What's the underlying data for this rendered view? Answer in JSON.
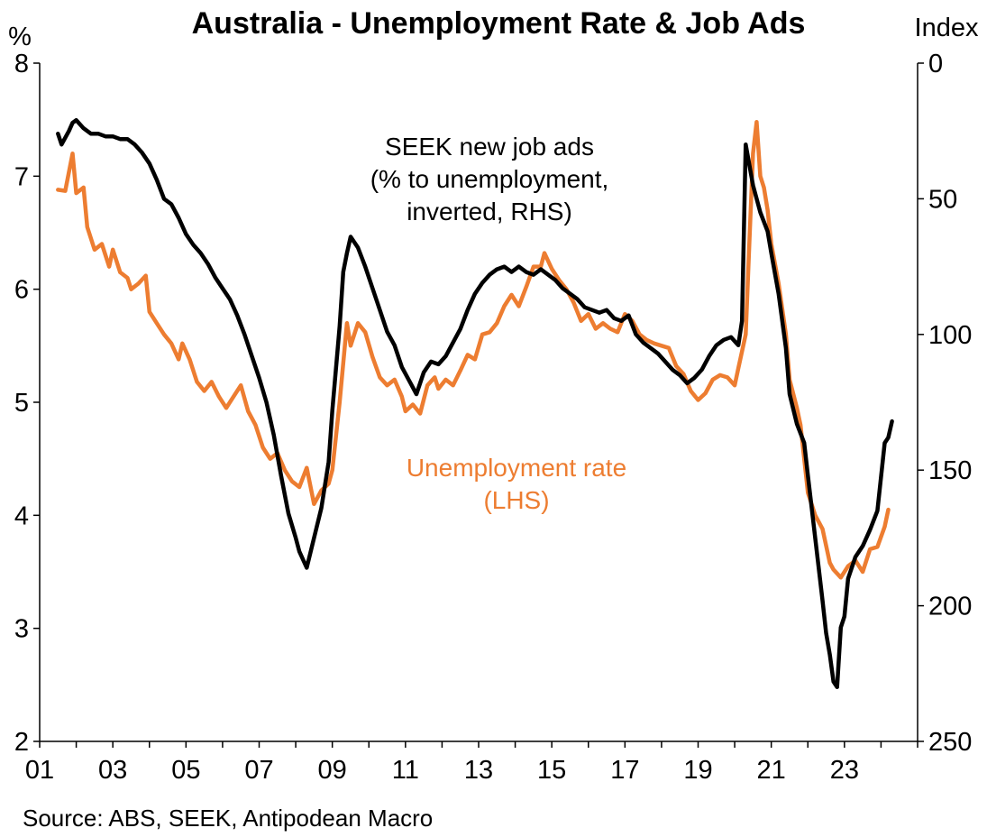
{
  "chart_data": {
    "type": "line",
    "title": "Australia - Unemployment Rate & Job Ads",
    "left_axis": {
      "unit": "%",
      "ylim": [
        2,
        8
      ],
      "ticks": [
        "2",
        "3",
        "4",
        "5",
        "6",
        "7",
        "8"
      ]
    },
    "right_axis": {
      "unit": "Index",
      "ylim": [
        0,
        250
      ],
      "inverted": true,
      "ticks": [
        "0",
        "50",
        "100",
        "150",
        "200",
        "250"
      ]
    },
    "x_axis": {
      "xlim": [
        2001,
        2025
      ],
      "ticks": [
        "01",
        "03",
        "05",
        "07",
        "09",
        "11",
        "13",
        "15",
        "17",
        "19",
        "21",
        "23"
      ],
      "tick_years": [
        2001,
        2003,
        2005,
        2007,
        2009,
        2011,
        2013,
        2015,
        2017,
        2019,
        2021,
        2023
      ]
    },
    "annotations": {
      "seek": [
        "SEEK new job ads",
        "(% to unemployment,",
        "inverted, RHS)"
      ],
      "unemployment": [
        "Unemployment rate",
        "(LHS)"
      ]
    },
    "source": "Source: ABS, SEEK, Antipodean Macro",
    "colors": {
      "seek": "#000000",
      "unemployment": "#ED7D31"
    },
    "series": [
      {
        "name": "Unemployment rate",
        "axis": "left",
        "points": [
          [
            2001.5,
            6.88
          ],
          [
            2001.7,
            6.87
          ],
          [
            2001.9,
            7.2
          ],
          [
            2002.0,
            6.85
          ],
          [
            2002.2,
            6.9
          ],
          [
            2002.3,
            6.55
          ],
          [
            2002.5,
            6.35
          ],
          [
            2002.7,
            6.4
          ],
          [
            2002.9,
            6.2
          ],
          [
            2003.0,
            6.35
          ],
          [
            2003.2,
            6.15
          ],
          [
            2003.4,
            6.1
          ],
          [
            2003.5,
            6.0
          ],
          [
            2003.7,
            6.05
          ],
          [
            2003.9,
            6.12
          ],
          [
            2004.0,
            5.8
          ],
          [
            2004.2,
            5.7
          ],
          [
            2004.4,
            5.6
          ],
          [
            2004.6,
            5.52
          ],
          [
            2004.8,
            5.38
          ],
          [
            2004.9,
            5.52
          ],
          [
            2005.1,
            5.38
          ],
          [
            2005.3,
            5.18
          ],
          [
            2005.5,
            5.1
          ],
          [
            2005.7,
            5.18
          ],
          [
            2005.9,
            5.05
          ],
          [
            2006.1,
            4.95
          ],
          [
            2006.3,
            5.05
          ],
          [
            2006.5,
            5.15
          ],
          [
            2006.7,
            4.92
          ],
          [
            2006.9,
            4.8
          ],
          [
            2007.1,
            4.6
          ],
          [
            2007.3,
            4.5
          ],
          [
            2007.5,
            4.55
          ],
          [
            2007.7,
            4.4
          ],
          [
            2007.9,
            4.3
          ],
          [
            2008.1,
            4.25
          ],
          [
            2008.3,
            4.42
          ],
          [
            2008.5,
            4.1
          ],
          [
            2008.7,
            4.22
          ],
          [
            2008.9,
            4.28
          ],
          [
            2009.0,
            4.4
          ],
          [
            2009.2,
            5.0
          ],
          [
            2009.4,
            5.7
          ],
          [
            2009.5,
            5.5
          ],
          [
            2009.7,
            5.7
          ],
          [
            2009.9,
            5.62
          ],
          [
            2010.1,
            5.4
          ],
          [
            2010.3,
            5.22
          ],
          [
            2010.5,
            5.15
          ],
          [
            2010.7,
            5.2
          ],
          [
            2010.9,
            5.05
          ],
          [
            2011.0,
            4.92
          ],
          [
            2011.2,
            4.98
          ],
          [
            2011.4,
            4.9
          ],
          [
            2011.6,
            5.15
          ],
          [
            2011.8,
            5.22
          ],
          [
            2011.9,
            5.12
          ],
          [
            2012.1,
            5.2
          ],
          [
            2012.3,
            5.15
          ],
          [
            2012.5,
            5.28
          ],
          [
            2012.7,
            5.42
          ],
          [
            2012.9,
            5.38
          ],
          [
            2013.1,
            5.6
          ],
          [
            2013.3,
            5.62
          ],
          [
            2013.5,
            5.7
          ],
          [
            2013.7,
            5.85
          ],
          [
            2013.9,
            5.95
          ],
          [
            2014.1,
            5.85
          ],
          [
            2014.3,
            6.02
          ],
          [
            2014.5,
            6.2
          ],
          [
            2014.7,
            6.2
          ],
          [
            2014.8,
            6.32
          ],
          [
            2015.0,
            6.18
          ],
          [
            2015.2,
            6.08
          ],
          [
            2015.4,
            6.0
          ],
          [
            2015.6,
            5.88
          ],
          [
            2015.8,
            5.72
          ],
          [
            2016.0,
            5.78
          ],
          [
            2016.2,
            5.65
          ],
          [
            2016.4,
            5.7
          ],
          [
            2016.6,
            5.65
          ],
          [
            2016.8,
            5.62
          ],
          [
            2017.0,
            5.78
          ],
          [
            2017.2,
            5.72
          ],
          [
            2017.4,
            5.6
          ],
          [
            2017.6,
            5.55
          ],
          [
            2017.8,
            5.52
          ],
          [
            2018.0,
            5.5
          ],
          [
            2018.2,
            5.48
          ],
          [
            2018.4,
            5.32
          ],
          [
            2018.6,
            5.25
          ],
          [
            2018.8,
            5.1
          ],
          [
            2019.0,
            5.02
          ],
          [
            2019.2,
            5.08
          ],
          [
            2019.4,
            5.2
          ],
          [
            2019.6,
            5.24
          ],
          [
            2019.8,
            5.22
          ],
          [
            2020.0,
            5.15
          ],
          [
            2020.1,
            5.3
          ],
          [
            2020.3,
            5.6
          ],
          [
            2020.4,
            6.4
          ],
          [
            2020.5,
            7.2
          ],
          [
            2020.6,
            7.48
          ],
          [
            2020.7,
            7.0
          ],
          [
            2020.8,
            6.9
          ],
          [
            2020.9,
            6.7
          ],
          [
            2021.0,
            6.4
          ],
          [
            2021.2,
            6.05
          ],
          [
            2021.4,
            5.6
          ],
          [
            2021.5,
            5.2
          ],
          [
            2021.7,
            4.95
          ],
          [
            2021.8,
            4.8
          ],
          [
            2022.0,
            4.2
          ],
          [
            2022.2,
            4.0
          ],
          [
            2022.4,
            3.88
          ],
          [
            2022.6,
            3.58
          ],
          [
            2022.7,
            3.52
          ],
          [
            2022.9,
            3.45
          ],
          [
            2023.1,
            3.55
          ],
          [
            2023.3,
            3.6
          ],
          [
            2023.5,
            3.5
          ],
          [
            2023.7,
            3.7
          ],
          [
            2023.9,
            3.72
          ],
          [
            2024.1,
            3.9
          ],
          [
            2024.2,
            4.05
          ]
        ]
      },
      {
        "name": "SEEK new job ads",
        "axis": "right",
        "points": [
          [
            2001.5,
            26
          ],
          [
            2001.6,
            30
          ],
          [
            2001.8,
            25
          ],
          [
            2001.9,
            22
          ],
          [
            2002.0,
            21
          ],
          [
            2002.2,
            24
          ],
          [
            2002.4,
            26
          ],
          [
            2002.6,
            26
          ],
          [
            2002.8,
            27
          ],
          [
            2003.0,
            27
          ],
          [
            2003.2,
            28
          ],
          [
            2003.4,
            28
          ],
          [
            2003.6,
            30
          ],
          [
            2003.8,
            33
          ],
          [
            2004.0,
            37
          ],
          [
            2004.2,
            43
          ],
          [
            2004.4,
            50
          ],
          [
            2004.6,
            52
          ],
          [
            2004.8,
            57
          ],
          [
            2005.0,
            63
          ],
          [
            2005.2,
            67
          ],
          [
            2005.4,
            70
          ],
          [
            2005.6,
            74
          ],
          [
            2005.8,
            79
          ],
          [
            2006.0,
            83
          ],
          [
            2006.2,
            87
          ],
          [
            2006.4,
            93
          ],
          [
            2006.6,
            100
          ],
          [
            2006.8,
            108
          ],
          [
            2007.0,
            116
          ],
          [
            2007.2,
            125
          ],
          [
            2007.4,
            137
          ],
          [
            2007.6,
            152
          ],
          [
            2007.8,
            166
          ],
          [
            2008.0,
            175
          ],
          [
            2008.1,
            180
          ],
          [
            2008.3,
            186
          ],
          [
            2008.5,
            175
          ],
          [
            2008.7,
            164
          ],
          [
            2008.9,
            147
          ],
          [
            2009.0,
            128
          ],
          [
            2009.2,
            97
          ],
          [
            2009.3,
            77
          ],
          [
            2009.4,
            70
          ],
          [
            2009.5,
            64
          ],
          [
            2009.7,
            68
          ],
          [
            2009.9,
            75
          ],
          [
            2010.1,
            83
          ],
          [
            2010.3,
            91
          ],
          [
            2010.5,
            99
          ],
          [
            2010.7,
            104
          ],
          [
            2010.9,
            112
          ],
          [
            2011.1,
            117
          ],
          [
            2011.3,
            122
          ],
          [
            2011.5,
            114
          ],
          [
            2011.7,
            110
          ],
          [
            2011.9,
            111
          ],
          [
            2012.1,
            108
          ],
          [
            2012.3,
            103
          ],
          [
            2012.5,
            98
          ],
          [
            2012.7,
            91
          ],
          [
            2012.9,
            85
          ],
          [
            2013.1,
            81
          ],
          [
            2013.3,
            78
          ],
          [
            2013.5,
            76
          ],
          [
            2013.7,
            75
          ],
          [
            2013.9,
            77
          ],
          [
            2014.1,
            75
          ],
          [
            2014.3,
            77
          ],
          [
            2014.5,
            78
          ],
          [
            2014.7,
            76
          ],
          [
            2014.9,
            78
          ],
          [
            2015.1,
            80
          ],
          [
            2015.3,
            83
          ],
          [
            2015.5,
            85
          ],
          [
            2015.7,
            87
          ],
          [
            2015.9,
            90
          ],
          [
            2016.1,
            91
          ],
          [
            2016.3,
            92
          ],
          [
            2016.5,
            91
          ],
          [
            2016.7,
            94
          ],
          [
            2016.9,
            95
          ],
          [
            2017.1,
            93
          ],
          [
            2017.3,
            100
          ],
          [
            2017.5,
            103
          ],
          [
            2017.7,
            105
          ],
          [
            2017.9,
            107
          ],
          [
            2018.1,
            110
          ],
          [
            2018.3,
            113
          ],
          [
            2018.5,
            115
          ],
          [
            2018.7,
            118
          ],
          [
            2018.9,
            116
          ],
          [
            2019.1,
            113
          ],
          [
            2019.3,
            108
          ],
          [
            2019.5,
            104
          ],
          [
            2019.7,
            102
          ],
          [
            2019.9,
            101
          ],
          [
            2020.1,
            104
          ],
          [
            2020.2,
            95
          ],
          [
            2020.3,
            30
          ],
          [
            2020.5,
            45
          ],
          [
            2020.7,
            55
          ],
          [
            2020.9,
            62
          ],
          [
            2021.0,
            70
          ],
          [
            2021.2,
            85
          ],
          [
            2021.4,
            105
          ],
          [
            2021.5,
            122
          ],
          [
            2021.7,
            133
          ],
          [
            2021.9,
            140
          ],
          [
            2022.0,
            152
          ],
          [
            2022.2,
            175
          ],
          [
            2022.4,
            198
          ],
          [
            2022.5,
            210
          ],
          [
            2022.6,
            218
          ],
          [
            2022.7,
            228
          ],
          [
            2022.8,
            230
          ],
          [
            2022.9,
            208
          ],
          [
            2023.0,
            204
          ],
          [
            2023.1,
            190
          ],
          [
            2023.3,
            182
          ],
          [
            2023.5,
            178
          ],
          [
            2023.7,
            172
          ],
          [
            2023.9,
            165
          ],
          [
            2024.1,
            140
          ],
          [
            2024.2,
            138
          ],
          [
            2024.3,
            132
          ]
        ]
      }
    ]
  }
}
